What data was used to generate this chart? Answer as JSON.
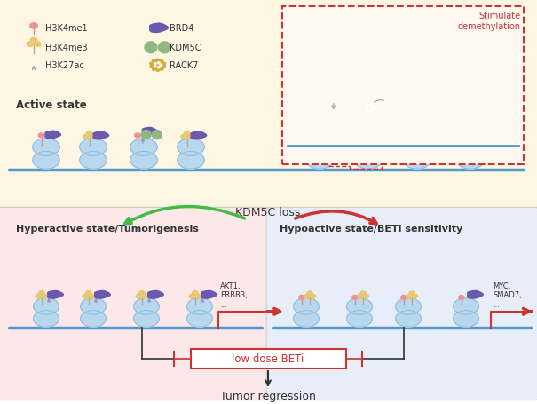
{
  "bg_top": "#fdf6e3",
  "bg_bottom_left": "#fce8e8",
  "bg_bottom_right": "#e8eef8",
  "top_panel_label": "Active state",
  "arrow_label": "KDM5C loss",
  "left_panel_label": "Hyperactive state/Tumorigenesis",
  "right_panel_label": "Hypoactive state/BETi sensitivity",
  "left_genes": "AKT1,\nERBB3,\n...",
  "right_genes": "MYC,\nSMAD7,\n...",
  "beti_label": "low dose BETi",
  "bottom_label": "Tumor regression",
  "stimulate_label": "Stimulate\ndemethylation",
  "nucleosome_color": "#b8d8f0",
  "nucleosome_outline": "#90bcd8",
  "dna_line_color": "#5599cc",
  "stem_color_h3k4me1": "#d09090",
  "stem_color_h3k4me3": "#c8a868",
  "stem_color_h3k27ac": "#a090c0",
  "brd4_color": "#6a5aad",
  "kdm5c_color": "#90b880",
  "rack7_color": "#d8a830",
  "h3k4me1_color": "#f09090",
  "h3k4me3_color": "#e8c870",
  "h3k27ac_color": "#a090c0",
  "arrow_green": "#44bb44",
  "arrow_red": "#cc3333",
  "dashed_box_color": "#cc3333",
  "panel_edge": "#cccccc",
  "text_color": "#333333"
}
